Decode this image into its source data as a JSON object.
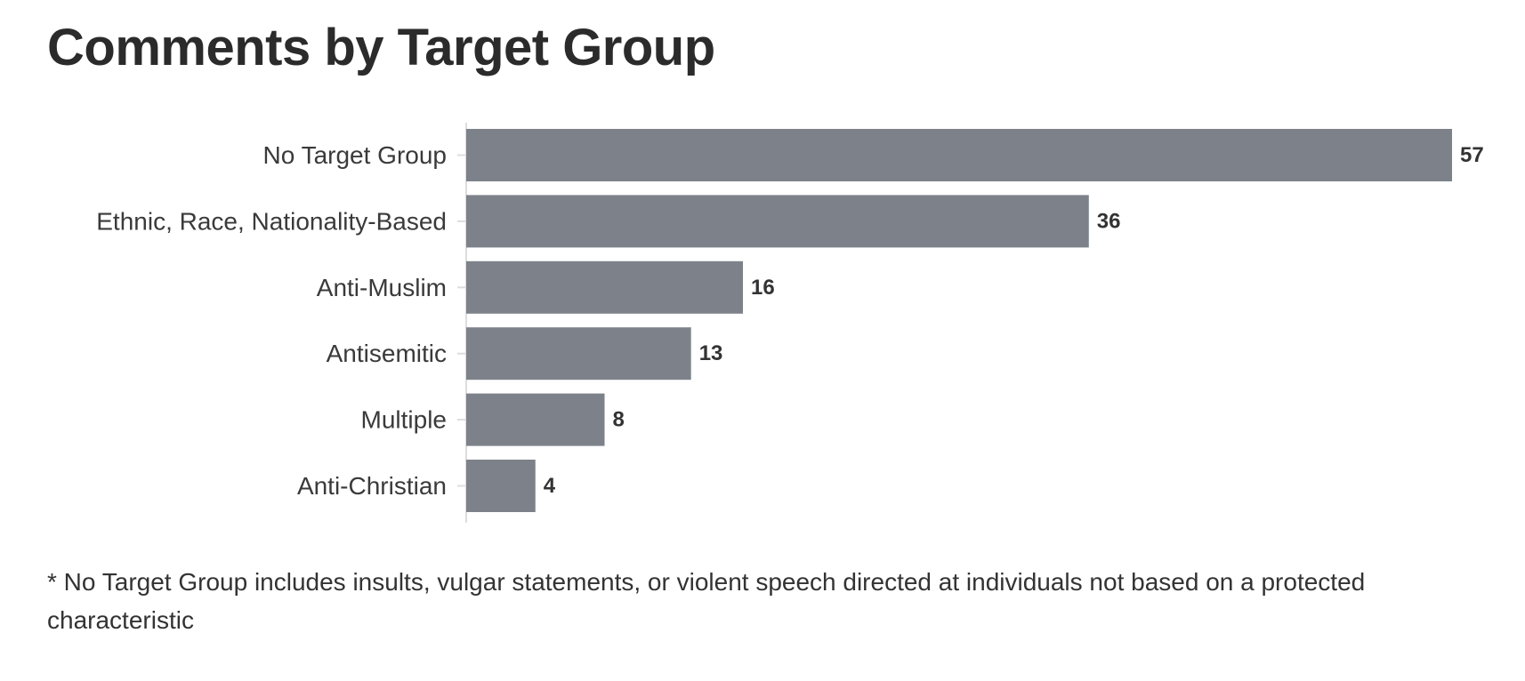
{
  "chart_data": {
    "type": "bar",
    "orientation": "horizontal",
    "title": "Comments by Target Group",
    "categories": [
      "No Target Group",
      "Ethnic, Race, Nationality-Based",
      "Anti-Muslim",
      "Antisemitic",
      "Multiple",
      "Anti-Christian"
    ],
    "values": [
      57,
      36,
      16,
      13,
      8,
      4
    ],
    "xlim": [
      0,
      57
    ],
    "grid": false,
    "bar_color": "#7d828a",
    "axis_color": "#dddddd"
  },
  "footnote": "* No Target Group includes insults, vulgar statements, or violent speech directed at individuals not based on a protected characteristic"
}
